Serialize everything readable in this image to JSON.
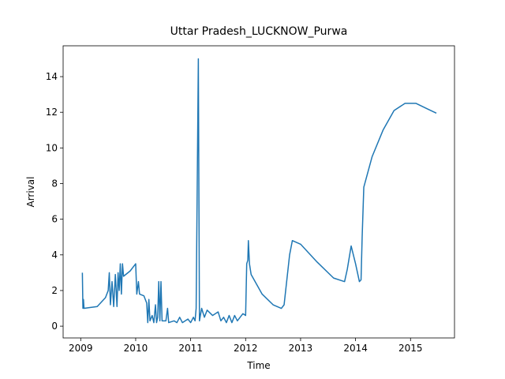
{
  "chart_data": {
    "type": "line",
    "title": "Uttar Pradesh_LUCKNOW_Purwa",
    "xlabel": "Time",
    "ylabel": "Arrival",
    "xlim": [
      2008.68,
      2015.8
    ],
    "ylim": [
      -0.66,
      15.73
    ],
    "xticks": [
      2009,
      2010,
      2011,
      2012,
      2013,
      2014,
      2015
    ],
    "yticks": [
      0,
      2,
      4,
      6,
      8,
      10,
      12,
      14
    ],
    "x": [
      2009.03,
      2009.04,
      2009.05,
      2009.06,
      2009.3,
      2009.45,
      2009.5,
      2009.52,
      2009.54,
      2009.57,
      2009.6,
      2009.63,
      2009.66,
      2009.68,
      2009.7,
      2009.72,
      2009.74,
      2009.76,
      2009.78,
      2009.9,
      2010.0,
      2010.02,
      2010.05,
      2010.07,
      2010.15,
      2010.2,
      2010.22,
      2010.24,
      2010.26,
      2010.3,
      2010.33,
      2010.36,
      2010.38,
      2010.4,
      2010.42,
      2010.44,
      2010.46,
      2010.48,
      2010.55,
      2010.58,
      2010.6,
      2010.7,
      2010.75,
      2010.8,
      2010.85,
      2010.95,
      2011.0,
      2011.05,
      2011.08,
      2011.1,
      2011.14,
      2011.16,
      2011.2,
      2011.25,
      2011.3,
      2011.4,
      2011.5,
      2011.55,
      2011.6,
      2011.65,
      2011.7,
      2011.75,
      2011.8,
      2011.85,
      2011.95,
      2012.0,
      2012.02,
      2012.04,
      2012.05,
      2012.07,
      2012.1,
      2012.3,
      2012.5,
      2012.65,
      2012.7,
      2012.8,
      2012.85,
      2013.0,
      2013.3,
      2013.6,
      2013.8,
      2013.85,
      2013.92,
      2014.0,
      2014.07,
      2014.1,
      2014.12,
      2014.15,
      2014.3,
      2014.5,
      2014.7,
      2014.9,
      2015.1,
      2015.3,
      2015.47
    ],
    "series": [
      {
        "color": "#1f77b4",
        "values": [
          3.0,
          1.0,
          1.5,
          1.0,
          1.1,
          1.6,
          2.0,
          3.0,
          1.2,
          2.5,
          1.1,
          2.9,
          1.1,
          3.0,
          2.0,
          3.5,
          1.8,
          3.5,
          2.8,
          3.1,
          3.5,
          1.8,
          2.5,
          1.8,
          1.7,
          1.3,
          0.2,
          1.5,
          0.3,
          0.6,
          0.2,
          1.2,
          0.2,
          0.5,
          2.5,
          0.3,
          2.5,
          0.3,
          0.3,
          1.0,
          0.2,
          0.3,
          0.2,
          0.5,
          0.2,
          0.4,
          0.2,
          0.5,
          0.3,
          1.0,
          15.0,
          0.3,
          1.0,
          0.5,
          0.9,
          0.6,
          0.8,
          0.3,
          0.5,
          0.2,
          0.6,
          0.2,
          0.6,
          0.3,
          0.7,
          0.6,
          3.5,
          3.7,
          4.8,
          3.5,
          2.9,
          1.8,
          1.2,
          1.0,
          1.2,
          4.0,
          4.8,
          4.6,
          3.6,
          2.7,
          2.5,
          3.2,
          4.5,
          3.5,
          2.5,
          2.6,
          5.0,
          7.8,
          9.5,
          11.0,
          12.1,
          12.5,
          12.5,
          12.2,
          11.95
        ]
      }
    ]
  }
}
